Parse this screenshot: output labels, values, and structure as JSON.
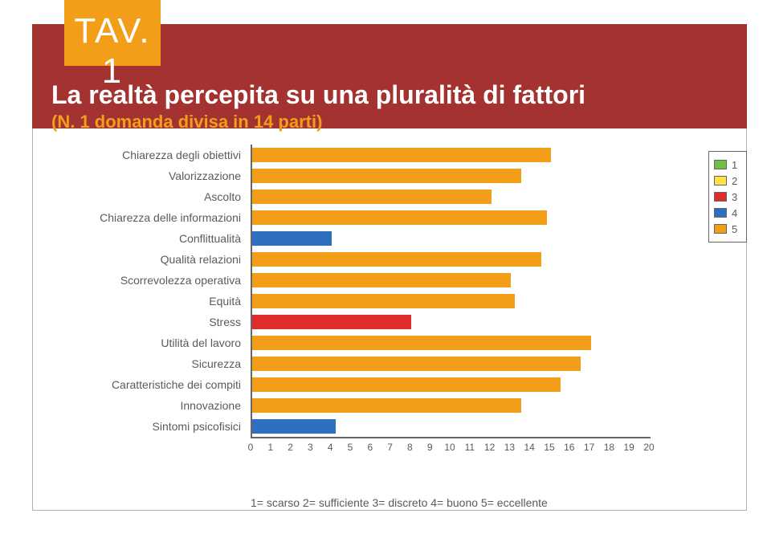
{
  "header": {
    "badge": "TAV. 1",
    "title": "La realtà percepita su una pluralità di fattori",
    "subtitle": "(N. 1 domanda divisa in 14 parti)"
  },
  "chart": {
    "type": "bar",
    "x_min": 0,
    "x_max": 20,
    "x_tick_step": 1,
    "bar_default_color": "#f29e18",
    "alt_color_blue": "#2f6fc0",
    "alt_color_red": "#e02c2c",
    "axis_color": "#666666",
    "label_color": "#5a5a5a",
    "label_fontsize": 14,
    "tick_fontsize": 12,
    "plot_bg": "#ffffff",
    "categories": [
      {
        "label": "Chiarezza degli obiettivi",
        "value": 15.0,
        "color": "#f29e18"
      },
      {
        "label": "Valorizzazione",
        "value": 13.5,
        "color": "#f29e18"
      },
      {
        "label": "Ascolto",
        "value": 12.0,
        "color": "#f29e18"
      },
      {
        "label": "Chiarezza delle informazioni",
        "value": 14.8,
        "color": "#f29e18"
      },
      {
        "label": "Conflittualità",
        "value": 4.0,
        "color": "#2f6fc0"
      },
      {
        "label": "Qualità relazioni",
        "value": 14.5,
        "color": "#f29e18"
      },
      {
        "label": "Scorrevolezza operativa",
        "value": 13.0,
        "color": "#f29e18"
      },
      {
        "label": "Equità",
        "value": 13.2,
        "color": "#f29e18"
      },
      {
        "label": "Stress",
        "value": 8.0,
        "color": "#e02c2c"
      },
      {
        "label": "Utilità del lavoro",
        "value": 17.0,
        "color": "#f29e18"
      },
      {
        "label": "Sicurezza",
        "value": 16.5,
        "color": "#f29e18"
      },
      {
        "label": "Caratteristiche dei compiti",
        "value": 15.5,
        "color": "#f29e18"
      },
      {
        "label": "Innovazione",
        "value": 13.5,
        "color": "#f29e18"
      },
      {
        "label": "Sintomi psicofisici",
        "value": 4.2,
        "color": "#2f6fc0"
      }
    ]
  },
  "legend": {
    "items": [
      {
        "label": "1",
        "color": "#6fbf44"
      },
      {
        "label": "2",
        "color": "#ffe24a"
      },
      {
        "label": "3",
        "color": "#e02c2c"
      },
      {
        "label": "4",
        "color": "#2f6fc0"
      },
      {
        "label": "5",
        "color": "#f29e18"
      }
    ]
  },
  "scale_key": "1= scarso 2= sufficiente 3= discreto 4= buono 5= eccellente",
  "colors": {
    "header_bg": "#a43231",
    "badge_bg": "#f29e18",
    "badge_text": "#ffffff",
    "title_text": "#ffffff",
    "subtitle_text": "#f29e18",
    "frame_border": "#b0b0b0"
  }
}
